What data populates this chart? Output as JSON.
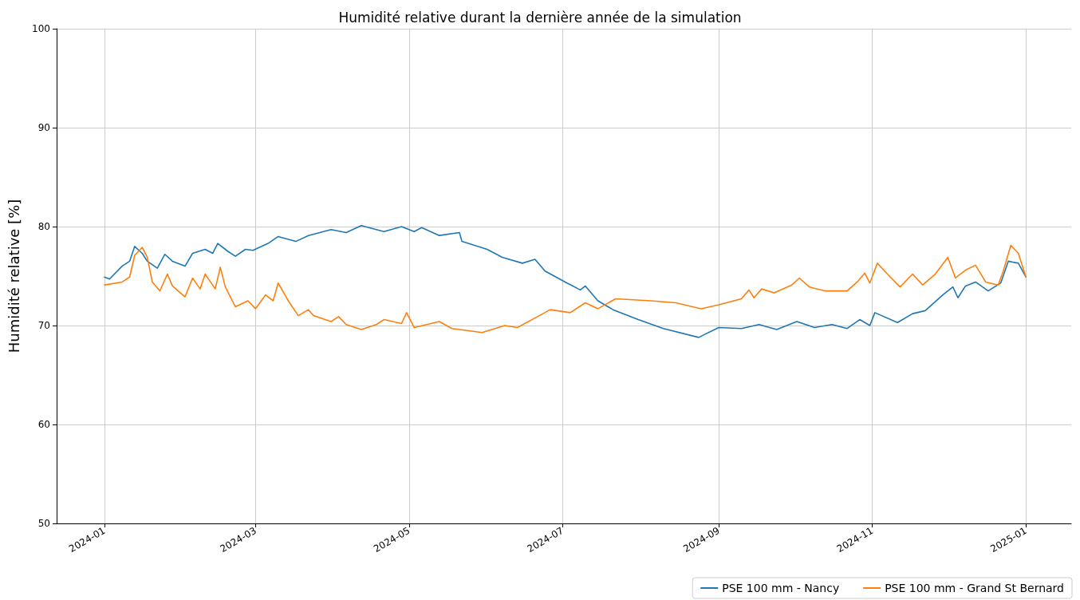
{
  "chart_data": {
    "type": "line",
    "title": "Humidité relative durant la dernière année de la simulation",
    "ylabel": "Humidité relative [%]",
    "xlim": [
      "2023-12-13",
      "2025-01-19"
    ],
    "xticks": [
      "2024-01",
      "2024-03",
      "2024-05",
      "2024-07",
      "2024-09",
      "2024-11",
      "2025-01"
    ],
    "ylim": [
      50,
      100
    ],
    "yticks": [
      50,
      60,
      70,
      80,
      90,
      100
    ],
    "grid": true,
    "legend": "bottom right",
    "marker": "none",
    "line_style": "solid",
    "series": [
      {
        "name": "PSE 100 mm - Nancy",
        "color": "#1f77b4",
        "x": [
          "2024-01-01",
          "2024-01-03",
          "2024-01-08",
          "2024-01-11",
          "2024-01-13",
          "2024-01-16",
          "2024-01-18",
          "2024-01-22",
          "2024-01-25",
          "2024-01-28",
          "2024-02-02",
          "2024-02-05",
          "2024-02-10",
          "2024-02-13",
          "2024-02-15",
          "2024-02-19",
          "2024-02-22",
          "2024-02-26",
          "2024-02-29",
          "2024-03-06",
          "2024-03-10",
          "2024-03-17",
          "2024-03-22",
          "2024-03-31",
          "2024-04-06",
          "2024-04-12",
          "2024-04-21",
          "2024-04-28",
          "2024-05-03",
          "2024-05-06",
          "2024-05-13",
          "2024-05-21",
          "2024-05-22",
          "2024-06-01",
          "2024-06-07",
          "2024-06-15",
          "2024-06-20",
          "2024-06-24",
          "2024-07-02",
          "2024-07-08",
          "2024-07-10",
          "2024-07-15",
          "2024-07-21",
          "2024-07-31",
          "2024-08-10",
          "2024-08-24",
          "2024-09-01",
          "2024-09-10",
          "2024-09-17",
          "2024-09-24",
          "2024-10-02",
          "2024-10-09",
          "2024-10-16",
          "2024-10-22",
          "2024-10-27",
          "2024-10-31",
          "2024-11-02",
          "2024-11-11",
          "2024-11-17",
          "2024-11-22",
          "2024-11-29",
          "2024-12-03",
          "2024-12-05",
          "2024-12-08",
          "2024-12-12",
          "2024-12-17",
          "2024-12-22",
          "2024-12-25",
          "2024-12-29",
          "2025-01-01"
        ],
        "values": [
          74.9,
          74.7,
          76.0,
          76.5,
          78.0,
          77.3,
          76.5,
          75.8,
          77.2,
          76.5,
          76.0,
          77.3,
          77.7,
          77.3,
          78.3,
          77.5,
          77.0,
          77.7,
          77.6,
          78.3,
          79.0,
          78.5,
          79.1,
          79.7,
          79.4,
          80.1,
          79.5,
          80.0,
          79.5,
          79.9,
          79.1,
          79.4,
          78.5,
          77.7,
          76.9,
          76.3,
          76.7,
          75.5,
          74.4,
          73.6,
          74.0,
          72.5,
          71.6,
          70.6,
          69.7,
          68.8,
          69.8,
          69.7,
          70.1,
          69.6,
          70.4,
          69.8,
          70.1,
          69.7,
          70.6,
          70.0,
          71.3,
          70.3,
          71.2,
          71.5,
          73.1,
          73.9,
          72.8,
          74.0,
          74.4,
          73.5,
          74.3,
          76.5,
          76.3,
          74.9
        ]
      },
      {
        "name": "PSE 100 mm - Grand St Bernard",
        "color": "#ff7f0e",
        "x": [
          "2024-01-01",
          "2024-01-08",
          "2024-01-11",
          "2024-01-13",
          "2024-01-16",
          "2024-01-18",
          "2024-01-20",
          "2024-01-23",
          "2024-01-26",
          "2024-01-28",
          "2024-02-02",
          "2024-02-05",
          "2024-02-08",
          "2024-02-10",
          "2024-02-14",
          "2024-02-16",
          "2024-02-18",
          "2024-02-22",
          "2024-02-27",
          "2024-03-01",
          "2024-03-05",
          "2024-03-08",
          "2024-03-10",
          "2024-03-14",
          "2024-03-18",
          "2024-03-22",
          "2024-03-24",
          "2024-03-31",
          "2024-04-03",
          "2024-04-06",
          "2024-04-12",
          "2024-04-18",
          "2024-04-21",
          "2024-04-28",
          "2024-04-30",
          "2024-05-03",
          "2024-05-13",
          "2024-05-18",
          "2024-05-30",
          "2024-06-08",
          "2024-06-13",
          "2024-06-21",
          "2024-06-26",
          "2024-07-04",
          "2024-07-10",
          "2024-07-15",
          "2024-07-22",
          "2024-08-05",
          "2024-08-15",
          "2024-08-25",
          "2024-09-01",
          "2024-09-10",
          "2024-09-13",
          "2024-09-15",
          "2024-09-18",
          "2024-09-23",
          "2024-09-30",
          "2024-10-03",
          "2024-10-07",
          "2024-10-13",
          "2024-10-22",
          "2024-10-26",
          "2024-10-29",
          "2024-10-31",
          "2024-11-03",
          "2024-11-07",
          "2024-11-12",
          "2024-11-17",
          "2024-11-21",
          "2024-11-26",
          "2024-12-01",
          "2024-12-04",
          "2024-12-08",
          "2024-12-12",
          "2024-12-16",
          "2024-12-21",
          "2024-12-23",
          "2024-12-26",
          "2024-12-29",
          "2025-01-01"
        ],
        "values": [
          74.1,
          74.4,
          74.9,
          77.1,
          77.9,
          76.9,
          74.4,
          73.5,
          75.2,
          74.0,
          72.9,
          74.8,
          73.7,
          75.2,
          73.7,
          75.9,
          73.9,
          71.9,
          72.5,
          71.7,
          73.1,
          72.5,
          74.3,
          72.5,
          71.0,
          71.6,
          71.0,
          70.4,
          70.9,
          70.1,
          69.6,
          70.1,
          70.6,
          70.2,
          71.3,
          69.8,
          70.4,
          69.7,
          69.3,
          70.0,
          69.8,
          70.9,
          71.6,
          71.3,
          72.3,
          71.7,
          72.7,
          72.5,
          72.3,
          71.7,
          72.1,
          72.7,
          73.6,
          72.8,
          73.7,
          73.3,
          74.1,
          74.8,
          73.9,
          73.5,
          73.5,
          74.4,
          75.3,
          74.3,
          76.3,
          75.2,
          73.9,
          75.2,
          74.1,
          75.2,
          76.9,
          74.8,
          75.6,
          76.1,
          74.4,
          74.1,
          75.5,
          78.1,
          77.3,
          74.9
        ]
      }
    ]
  }
}
